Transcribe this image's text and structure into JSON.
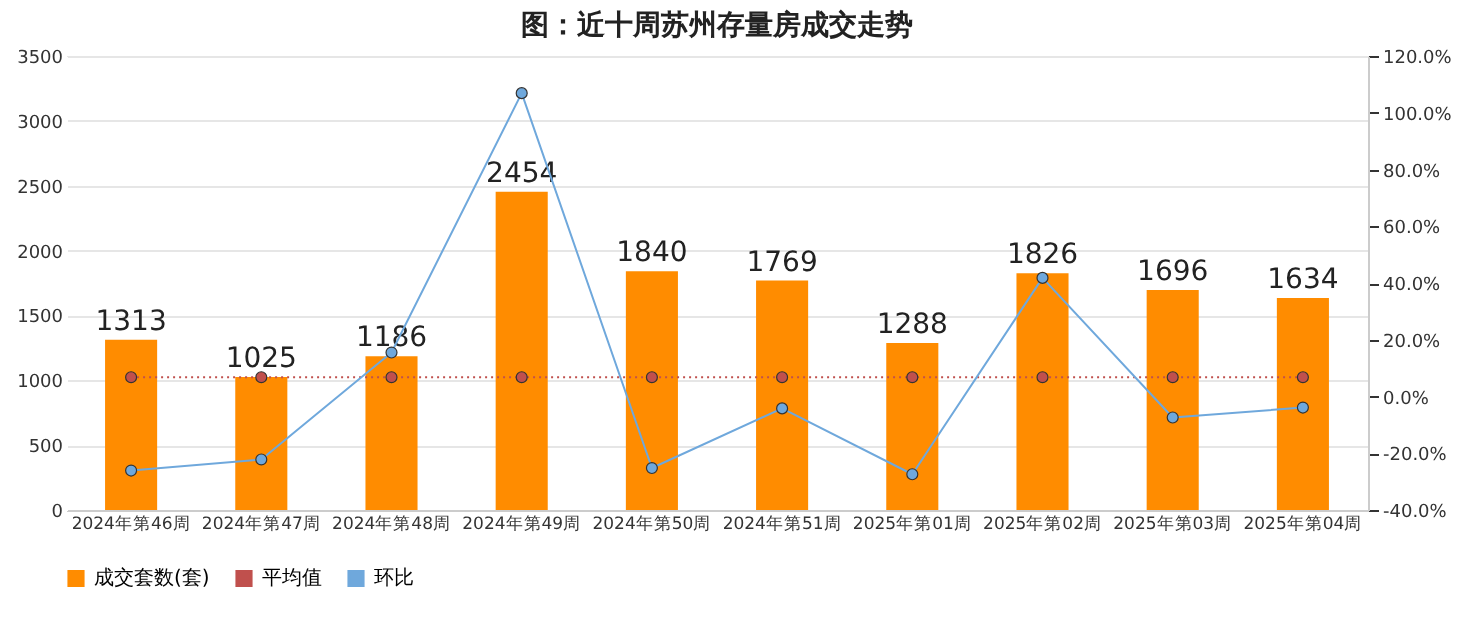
{
  "chart_data": {
    "type": "bar",
    "title": "图：近十周苏州存量房成交走势",
    "categories": [
      "2024年第46周",
      "2024年第47周",
      "2024年第48周",
      "2024年第49周",
      "2024年第50周",
      "2024年第51周",
      "2025年第01周",
      "2025年第02周",
      "2025年第03周",
      "2025年第04周"
    ],
    "series": [
      {
        "name": "成交套数(套)",
        "color": "#ff8c00",
        "values": [
          1313,
          1025,
          1186,
          2454,
          1840,
          1769,
          1288,
          1826,
          1696,
          1634
        ],
        "value_labels": [
          "1313",
          "1025",
          "1186",
          "2454",
          "1840",
          "1769",
          "1288",
          "1826",
          "1696",
          "1634"
        ]
      },
      {
        "name": "平均值",
        "type": "line",
        "axis": "y2",
        "color": "#c0504d",
        "line_style": "dotted",
        "values": [
          6.8,
          6.8,
          6.8,
          6.8,
          6.8,
          6.8,
          6.8,
          6.8,
          6.8,
          6.8
        ]
      },
      {
        "name": "环比",
        "type": "line",
        "axis": "y2",
        "color": "#6fa8dc",
        "line_style": "solid",
        "values": [
          -26.1,
          -22.2,
          15.5,
          106.9,
          -25.2,
          -4.2,
          -27.4,
          41.8,
          -7.4,
          -3.9
        ]
      }
    ],
    "ylim": [
      0,
      3500
    ],
    "yticks": [
      0,
      500,
      1000,
      1500,
      2000,
      2500,
      3000,
      3500
    ],
    "y2lim": [
      -40,
      120
    ],
    "y2ticks": [
      {
        "value": -40,
        "label": "-40.0%"
      },
      {
        "value": -20,
        "label": "-20.0%"
      },
      {
        "value": 0,
        "label": "0.0%"
      },
      {
        "value": 20,
        "label": "20.0%"
      },
      {
        "value": 40,
        "label": "40.0%"
      },
      {
        "value": 60,
        "label": "60.0%"
      },
      {
        "value": 80,
        "label": "80.0%"
      },
      {
        "value": 100,
        "label": "100.0%"
      },
      {
        "value": 120,
        "label": "120.0%"
      }
    ],
    "grid": "y",
    "legend": "bottom",
    "marker": "circle"
  }
}
